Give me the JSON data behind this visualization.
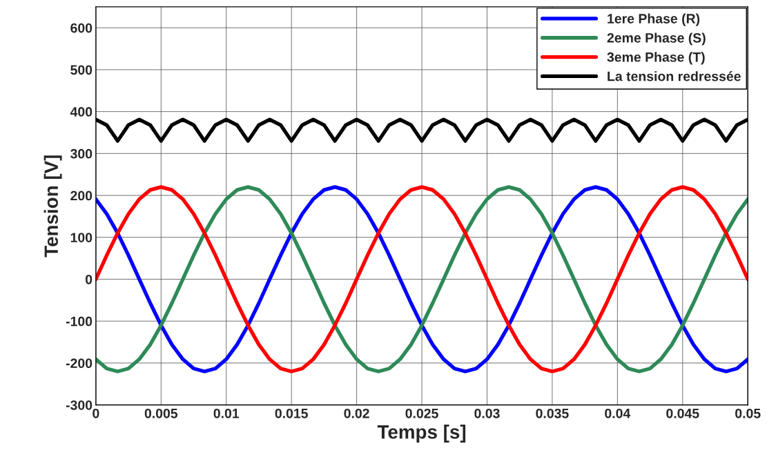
{
  "chart_data": {
    "type": "line",
    "xlabel": "Temps [s]",
    "ylabel": "Tension [V]",
    "x": [
      0,
      0.00083,
      0.00167,
      0.0025,
      0.00333,
      0.00417,
      0.005,
      0.00583,
      0.00667,
      0.0075,
      0.00833,
      0.00917,
      0.01,
      0.01083,
      0.01167,
      0.0125,
      0.01333,
      0.01417,
      0.015,
      0.01583,
      0.01667,
      0.0175,
      0.01833,
      0.01917,
      0.02,
      0.02083,
      0.02167,
      0.0225,
      0.02333,
      0.02417,
      0.025,
      0.02583,
      0.02667,
      0.0275,
      0.02833,
      0.02917,
      0.03,
      0.03083,
      0.03167,
      0.0325,
      0.03333,
      0.03417,
      0.035,
      0.03583,
      0.03667,
      0.0375,
      0.03833,
      0.03917,
      0.04,
      0.04083,
      0.04167,
      0.0425,
      0.04333,
      0.04417,
      0.045,
      0.04583,
      0.04667,
      0.0475,
      0.04833,
      0.04917,
      0.05
    ],
    "series": [
      {
        "name": "1ere Phase (R)",
        "color": "#0000ff",
        "values": [
          191,
          156,
          110,
          57,
          0,
          -57,
          -110,
          -156,
          -191,
          -213,
          -220,
          -213,
          -191,
          -156,
          -110,
          -57,
          0,
          57,
          110,
          156,
          191,
          213,
          220,
          213,
          191,
          156,
          110,
          57,
          0,
          -57,
          -110,
          -156,
          -191,
          -213,
          -220,
          -213,
          -191,
          -156,
          -110,
          -57,
          0,
          57,
          110,
          156,
          191,
          213,
          220,
          213,
          191,
          156,
          110,
          57,
          0,
          -57,
          -110,
          -156,
          -191,
          -213,
          -220,
          -213,
          -191
        ]
      },
      {
        "name": "2eme Phase (S)",
        "color": "#2e8a57",
        "values": [
          -191,
          -213,
          -220,
          -213,
          -191,
          -156,
          -110,
          -57,
          0,
          57,
          110,
          156,
          191,
          213,
          220,
          213,
          191,
          156,
          110,
          57,
          0,
          -57,
          -110,
          -156,
          -191,
          -213,
          -220,
          -213,
          -191,
          -156,
          -110,
          -57,
          0,
          57,
          110,
          156,
          191,
          213,
          220,
          213,
          191,
          156,
          110,
          57,
          0,
          -57,
          -110,
          -156,
          -191,
          -213,
          -220,
          -213,
          -191,
          -156,
          -110,
          -57,
          0,
          57,
          110,
          156,
          191
        ]
      },
      {
        "name": "3eme Phase (T)",
        "color": "#ff0000",
        "values": [
          0,
          57,
          110,
          156,
          191,
          213,
          220,
          213,
          191,
          156,
          110,
          57,
          0,
          -57,
          -110,
          -156,
          -191,
          -213,
          -220,
          -213,
          -191,
          -156,
          -110,
          -57,
          0,
          57,
          110,
          156,
          191,
          213,
          220,
          213,
          191,
          156,
          110,
          57,
          0,
          -57,
          -110,
          -156,
          -191,
          -213,
          -220,
          -213,
          -191,
          -156,
          -110,
          -57,
          0,
          57,
          110,
          156,
          191,
          213,
          220,
          213,
          191,
          156,
          110,
          57,
          0
        ]
      },
      {
        "name": "La tension redressée",
        "color": "#000000",
        "values": [
          381,
          368,
          330,
          368,
          381,
          368,
          330,
          368,
          381,
          368,
          330,
          368,
          381,
          368,
          330,
          368,
          381,
          368,
          330,
          368,
          381,
          368,
          330,
          368,
          381,
          368,
          330,
          368,
          381,
          368,
          330,
          368,
          381,
          368,
          330,
          368,
          381,
          368,
          330,
          368,
          381,
          368,
          330,
          368,
          381,
          368,
          330,
          368,
          381,
          368,
          330,
          368,
          381,
          368,
          330,
          368,
          381,
          368,
          330,
          368,
          381
        ]
      }
    ],
    "xlim": [
      0,
      0.05
    ],
    "xticks": [
      0,
      0.005,
      0.01,
      0.015,
      0.02,
      0.025,
      0.03,
      0.035,
      0.04,
      0.045,
      0.05
    ],
    "ylim": [
      -300,
      650
    ],
    "yticks": [
      -300,
      -200,
      -100,
      0,
      100,
      200,
      300,
      400,
      500,
      600
    ],
    "grid": true,
    "legend": "top right"
  }
}
